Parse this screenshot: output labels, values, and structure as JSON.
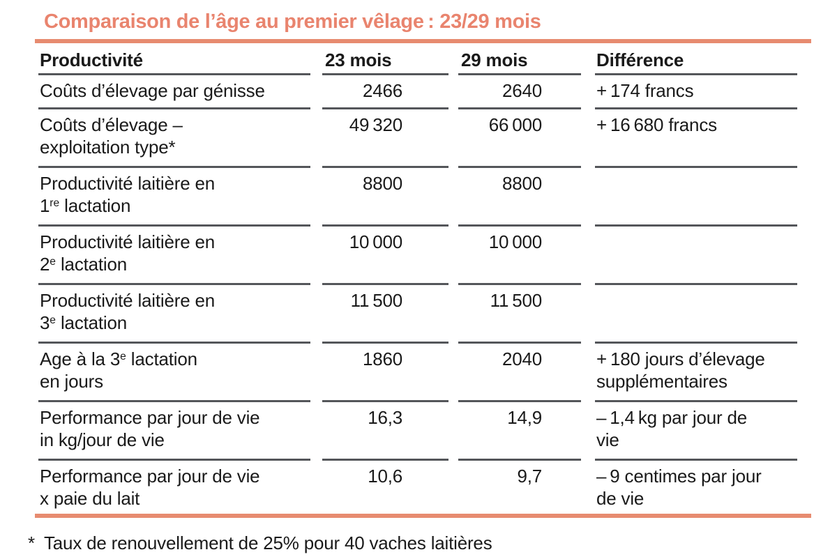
{
  "title": "Comparaison de l’âge au premier vêlage : 23/29 mois",
  "colors": {
    "accent_text": "#E9846E",
    "accent_rule": "#E78B70",
    "rule_gray": "#54565A",
    "body_text": "#1A1A1A"
  },
  "table": {
    "columns": [
      "Productivité",
      "23 mois",
      "29 mois",
      "Différence"
    ],
    "rows": [
      {
        "label": "Coûts d’élevage par génisse",
        "v23": "2466",
        "v29": "2640",
        "diff": "+ 174 francs"
      },
      {
        "label": "Coûts d’élevage –\nexploitation type*",
        "v23": "49 320",
        "v29": "66 000",
        "diff": "+ 16 680 francs"
      },
      {
        "label": "Productivité laitière en\n1^{re} lactation",
        "v23": "8800",
        "v29": "8800",
        "diff": ""
      },
      {
        "label": "Productivité laitière en\n2^{e} lactation",
        "v23": "10 000",
        "v29": "10 000",
        "diff": ""
      },
      {
        "label": "Productivité laitière en\n3^{e} lactation",
        "v23": "11 500",
        "v29": "11 500",
        "diff": ""
      },
      {
        "label": "Age à la 3^{e} lactation\nen jours",
        "v23": "1860",
        "v29": "2040",
        "diff": "+ 180 jours d’élevage\nsupplémentaires"
      },
      {
        "label": "Performance par jour de vie\nin kg/jour de vie",
        "v23": "16,3",
        "v29": "14,9",
        "diff": "– 1,4 kg par jour de\nvie"
      },
      {
        "label": "Performance par jour de vie\nx paie du lait",
        "v23": "10,6",
        "v29": "9,7",
        "diff": "– 9 centimes par jour\nde vie"
      }
    ]
  },
  "footnote": {
    "marker": "*",
    "text": "Taux de renouvellement de 25% pour 40 vaches laitières"
  }
}
